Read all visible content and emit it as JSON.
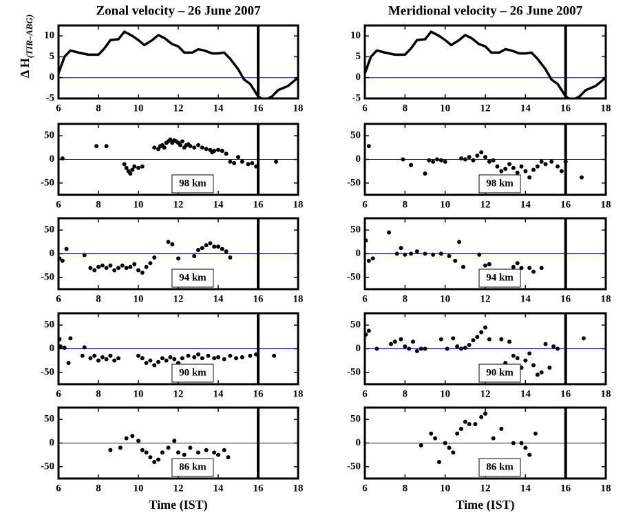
{
  "chart_data": [
    {
      "type": "line",
      "title": "Zonal velocity  – 26 June 2007",
      "ylabel": "Δ H",
      "ylabel_subscript": "(TIR–ABG)",
      "x": [
        6,
        6.3,
        6.6,
        7,
        7.5,
        8,
        8.3,
        8.6,
        9,
        9.3,
        9.7,
        10,
        10.3,
        10.7,
        11,
        11.3,
        11.7,
        12,
        12.3,
        12.7,
        13,
        13.3,
        13.7,
        14,
        14.3,
        14.6,
        15,
        15.3,
        15.6,
        16,
        16.3,
        16.7,
        17,
        17.5,
        18
      ],
      "values": [
        1,
        5,
        6.5,
        6,
        5.5,
        5.5,
        7,
        9,
        9.2,
        11,
        10,
        9,
        7.8,
        9,
        10.2,
        9.5,
        8,
        7.5,
        6,
        6,
        6.8,
        6.5,
        5.8,
        5.8,
        6,
        4.5,
        2,
        -0.5,
        -1.5,
        -4.5,
        -5.5,
        -4.5,
        -3,
        -2,
        0
      ],
      "color": "#000000",
      "xlim": [
        6,
        18
      ],
      "ylim": [
        -5,
        12.5
      ],
      "xticks": [
        6,
        8,
        10,
        12,
        14,
        16,
        18
      ],
      "yticks": [
        -5,
        0,
        5,
        10
      ],
      "vline": 16,
      "hline": 0
    },
    {
      "type": "line",
      "title": "Meridional velocity  – 26 June 2007",
      "x": [
        6,
        6.3,
        6.6,
        7,
        7.5,
        8,
        8.3,
        8.6,
        9,
        9.3,
        9.7,
        10,
        10.3,
        10.7,
        11,
        11.3,
        11.7,
        12,
        12.3,
        12.7,
        13,
        13.3,
        13.7,
        14,
        14.3,
        14.6,
        15,
        15.3,
        15.6,
        16,
        16.3,
        16.7,
        17,
        17.5,
        18
      ],
      "values": [
        1,
        5,
        6.5,
        6,
        5.5,
        5.5,
        7,
        9,
        9.2,
        11,
        10,
        9,
        7.8,
        9,
        10.2,
        9.5,
        8,
        7.5,
        6,
        6,
        6.8,
        6.5,
        5.8,
        5.8,
        6,
        4.5,
        2,
        -0.5,
        -1.5,
        -4.5,
        -5.5,
        -4.5,
        -3,
        -2,
        0
      ],
      "color": "#000000",
      "xlim": [
        6,
        18
      ],
      "ylim": [
        -5,
        12.5
      ],
      "xticks": [
        6,
        8,
        10,
        12,
        14,
        16,
        18
      ],
      "yticks": [
        -5,
        0,
        5,
        10
      ],
      "vline": 16,
      "hline": 0
    },
    {
      "type": "scatter",
      "annotation": "98 km",
      "x": [
        6.2,
        7.9,
        8.4,
        9.3,
        9.4,
        9.5,
        9.6,
        9.7,
        9.8,
        10,
        10.2,
        10.8,
        11,
        11.1,
        11.2,
        11.3,
        11.4,
        11.5,
        11.6,
        11.7,
        11.8,
        11.9,
        12,
        12.1,
        12.2,
        12.3,
        12.4,
        12.5,
        12.6,
        12.8,
        13,
        13.2,
        13.4,
        13.6,
        13.7,
        13.8,
        14,
        14.2,
        14.4,
        14.6,
        14.8,
        15,
        15.2,
        15.5,
        15.7,
        15.9,
        16.9
      ],
      "values": [
        2,
        28,
        28,
        -10,
        -18,
        -25,
        -30,
        -22,
        -15,
        -18,
        -15,
        25,
        22,
        28,
        30,
        25,
        35,
        38,
        42,
        35,
        40,
        38,
        35,
        30,
        38,
        25,
        30,
        32,
        28,
        25,
        30,
        25,
        22,
        20,
        15,
        18,
        20,
        18,
        12,
        -5,
        -8,
        5,
        -5,
        -10,
        -8,
        -15,
        -5
      ],
      "color": "#000000",
      "xlim": [
        6,
        18
      ],
      "ylim": [
        -75,
        75
      ],
      "xticks": [
        6,
        8,
        10,
        12,
        14,
        16,
        18
      ],
      "yticks": [
        -50,
        0,
        50
      ],
      "vline": 16,
      "hline": 0
    },
    {
      "type": "scatter",
      "annotation": "98 km",
      "x": [
        6.2,
        7.9,
        8.3,
        9,
        9.2,
        9.4,
        9.6,
        9.8,
        10,
        10.8,
        11,
        11.2,
        11.4,
        11.6,
        11.8,
        12,
        12.2,
        12.4,
        12.6,
        12.8,
        13,
        13.2,
        13.4,
        13.6,
        13.8,
        14,
        14.2,
        14.4,
        14.6,
        14.8,
        15,
        15.3,
        15.6,
        15.8,
        16,
        16.8
      ],
      "values": [
        28,
        0,
        -12,
        -30,
        -2,
        -5,
        0,
        -2,
        -5,
        2,
        0,
        5,
        -2,
        8,
        15,
        5,
        -5,
        -2,
        -15,
        -25,
        -20,
        -10,
        -18,
        -28,
        -15,
        -25,
        -38,
        -22,
        -15,
        -5,
        -10,
        -5,
        -15,
        -25,
        -5,
        -38
      ],
      "color": "#000000",
      "xlim": [
        6,
        18
      ],
      "ylim": [
        -75,
        75
      ],
      "xticks": [
        6,
        8,
        10,
        12,
        14,
        16,
        18
      ],
      "yticks": [
        -50,
        0,
        50
      ],
      "vline": 16,
      "hline": 0
    },
    {
      "type": "scatter",
      "annotation": "94 km",
      "x": [
        6.05,
        6.2,
        6.4,
        7.3,
        7.6,
        7.8,
        8,
        8.2,
        8.4,
        8.6,
        8.8,
        9,
        9.2,
        9.4,
        9.6,
        9.8,
        10,
        10.2,
        10.4,
        10.6,
        10.8,
        11.5,
        11.7,
        12,
        12.8,
        13,
        13.2,
        13.4,
        13.6,
        13.8,
        14,
        14.2,
        14.4,
        14.6
      ],
      "values": [
        -10,
        -15,
        10,
        -3,
        -30,
        -35,
        -28,
        -25,
        -30,
        -25,
        -35,
        -30,
        -25,
        -30,
        -28,
        -22,
        -35,
        -40,
        -28,
        -20,
        -8,
        25,
        20,
        -10,
        -5,
        8,
        12,
        18,
        22,
        15,
        15,
        10,
        5,
        -8
      ],
      "color": "#000000",
      "xlim": [
        6,
        18
      ],
      "ylim": [
        -75,
        75
      ],
      "xticks": [
        6,
        8,
        10,
        12,
        14,
        16,
        18
      ],
      "yticks": [
        -50,
        0,
        50
      ],
      "vline": 16,
      "hline": 0
    },
    {
      "type": "scatter",
      "annotation": "94 km",
      "x": [
        6.05,
        6.2,
        6.4,
        7.2,
        7.6,
        7.8,
        8,
        8.3,
        8.6,
        9,
        9.4,
        9.8,
        10.2,
        10.5,
        10.7,
        10.9,
        11.7,
        12,
        12.2,
        12.8,
        13.2,
        13.4,
        13.6,
        13.8,
        14.2,
        14.4,
        14.8
      ],
      "values": [
        28,
        -15,
        -10,
        45,
        0,
        12,
        -2,
        0,
        5,
        0,
        -2,
        0,
        -5,
        -15,
        25,
        -28,
        -2,
        -25,
        -22,
        -40,
        -40,
        -28,
        -20,
        -30,
        -30,
        -38,
        -30
      ],
      "color": "#000000",
      "xlim": [
        6,
        18
      ],
      "ylim": [
        -75,
        75
      ],
      "xticks": [
        6,
        8,
        10,
        12,
        14,
        16,
        18
      ],
      "yticks": [
        -50,
        0,
        50
      ],
      "vline": 16,
      "hline": 0
    },
    {
      "type": "scatter",
      "annotation": "90 km",
      "x": [
        6.05,
        6.1,
        6.3,
        6.5,
        6.6,
        7.2,
        7.3,
        7.6,
        7.8,
        8,
        8.2,
        8.4,
        8.6,
        8.8,
        9,
        10,
        10.2,
        10.4,
        10.6,
        10.8,
        11,
        11.2,
        11.4,
        11.6,
        11.8,
        12,
        12.2,
        12.5,
        12.8,
        13,
        13.2,
        13.5,
        13.8,
        14,
        14.3,
        14.6,
        14.9,
        15.2,
        15.6,
        15.9,
        16.8
      ],
      "values": [
        20,
        5,
        2,
        -30,
        22,
        -15,
        3,
        -20,
        -15,
        -25,
        -18,
        -22,
        -15,
        -25,
        -20,
        -15,
        -20,
        -30,
        -25,
        -35,
        -28,
        -20,
        -25,
        -18,
        -22,
        -30,
        -20,
        -15,
        -18,
        -12,
        -20,
        -15,
        -20,
        -18,
        -22,
        -15,
        -20,
        -18,
        -15,
        -12,
        -15
      ],
      "color": "#000000",
      "xlim": [
        6,
        18
      ],
      "ylim": [
        -75,
        75
      ],
      "xticks": [
        6,
        8,
        10,
        12,
        14,
        16,
        18
      ],
      "yticks": [
        -50,
        0,
        50
      ],
      "vline": 16,
      "hline": 0
    },
    {
      "type": "scatter",
      "annotation": "90 km",
      "x": [
        6.05,
        6.2,
        6.6,
        7.3,
        7.5,
        7.8,
        8,
        8.2,
        8.4,
        8.6,
        8.8,
        9,
        9.8,
        10.1,
        10.4,
        10.6,
        10.8,
        11,
        11.2,
        11.4,
        11.6,
        11.8,
        12,
        12.2,
        12.8,
        13,
        13.2,
        13.4,
        13.6,
        13.8,
        14,
        14.2,
        14.4,
        14.6,
        14.8,
        15,
        15.2,
        15.4,
        15.6,
        16.9
      ],
      "values": [
        30,
        38,
        0,
        10,
        15,
        20,
        5,
        0,
        15,
        -5,
        0,
        0,
        20,
        0,
        22,
        5,
        0,
        2,
        8,
        18,
        25,
        35,
        45,
        20,
        20,
        -30,
        15,
        -15,
        -20,
        -40,
        -25,
        -10,
        -35,
        -55,
        -50,
        10,
        -40,
        5,
        0,
        22
      ],
      "color": "#000000",
      "xlim": [
        6,
        18
      ],
      "ylim": [
        -75,
        75
      ],
      "xticks": [
        6,
        8,
        10,
        12,
        14,
        16,
        18
      ],
      "yticks": [
        -50,
        0,
        50
      ],
      "vline": 16,
      "hline": 0
    },
    {
      "type": "scatter",
      "annotation": "86 km",
      "xlabel": "Time (IST)",
      "x": [
        8.6,
        9.1,
        9.4,
        9.7,
        10,
        10.2,
        10.4,
        10.6,
        10.8,
        11,
        11.2,
        11.5,
        11.8,
        12,
        12.3,
        12.6,
        13,
        13.4,
        13.8,
        14,
        14.3,
        14.5
      ],
      "values": [
        -15,
        -10,
        10,
        15,
        5,
        -15,
        -20,
        -30,
        -40,
        -35,
        -20,
        -10,
        5,
        -20,
        -25,
        -10,
        -20,
        -15,
        -20,
        -25,
        -15,
        -30
      ],
      "color": "#000000",
      "xlim": [
        6,
        18
      ],
      "ylim": [
        -75,
        75
      ],
      "xticks": [
        6,
        8,
        10,
        12,
        14,
        16,
        18
      ],
      "yticks": [
        -50,
        0,
        50
      ],
      "vline": 16,
      "hline": 0
    },
    {
      "type": "scatter",
      "annotation": "86 km",
      "xlabel": "Time (IST)",
      "x": [
        8.8,
        9.3,
        9.5,
        9.7,
        10,
        10.2,
        10.4,
        10.6,
        10.8,
        11,
        11.2,
        11.5,
        11.8,
        12,
        12.4,
        12.8,
        13.4,
        13.8,
        14,
        14.2,
        14.5
      ],
      "values": [
        -5,
        20,
        10,
        -40,
        0,
        -10,
        -20,
        20,
        30,
        45,
        40,
        40,
        55,
        62,
        10,
        30,
        0,
        0,
        -10,
        -25,
        20
      ],
      "color": "#000000",
      "xlim": [
        6,
        18
      ],
      "ylim": [
        -75,
        75
      ],
      "xticks": [
        6,
        8,
        10,
        12,
        14,
        16,
        18
      ],
      "yticks": [
        -50,
        0,
        50
      ],
      "vline": 16,
      "hline": 0
    }
  ]
}
